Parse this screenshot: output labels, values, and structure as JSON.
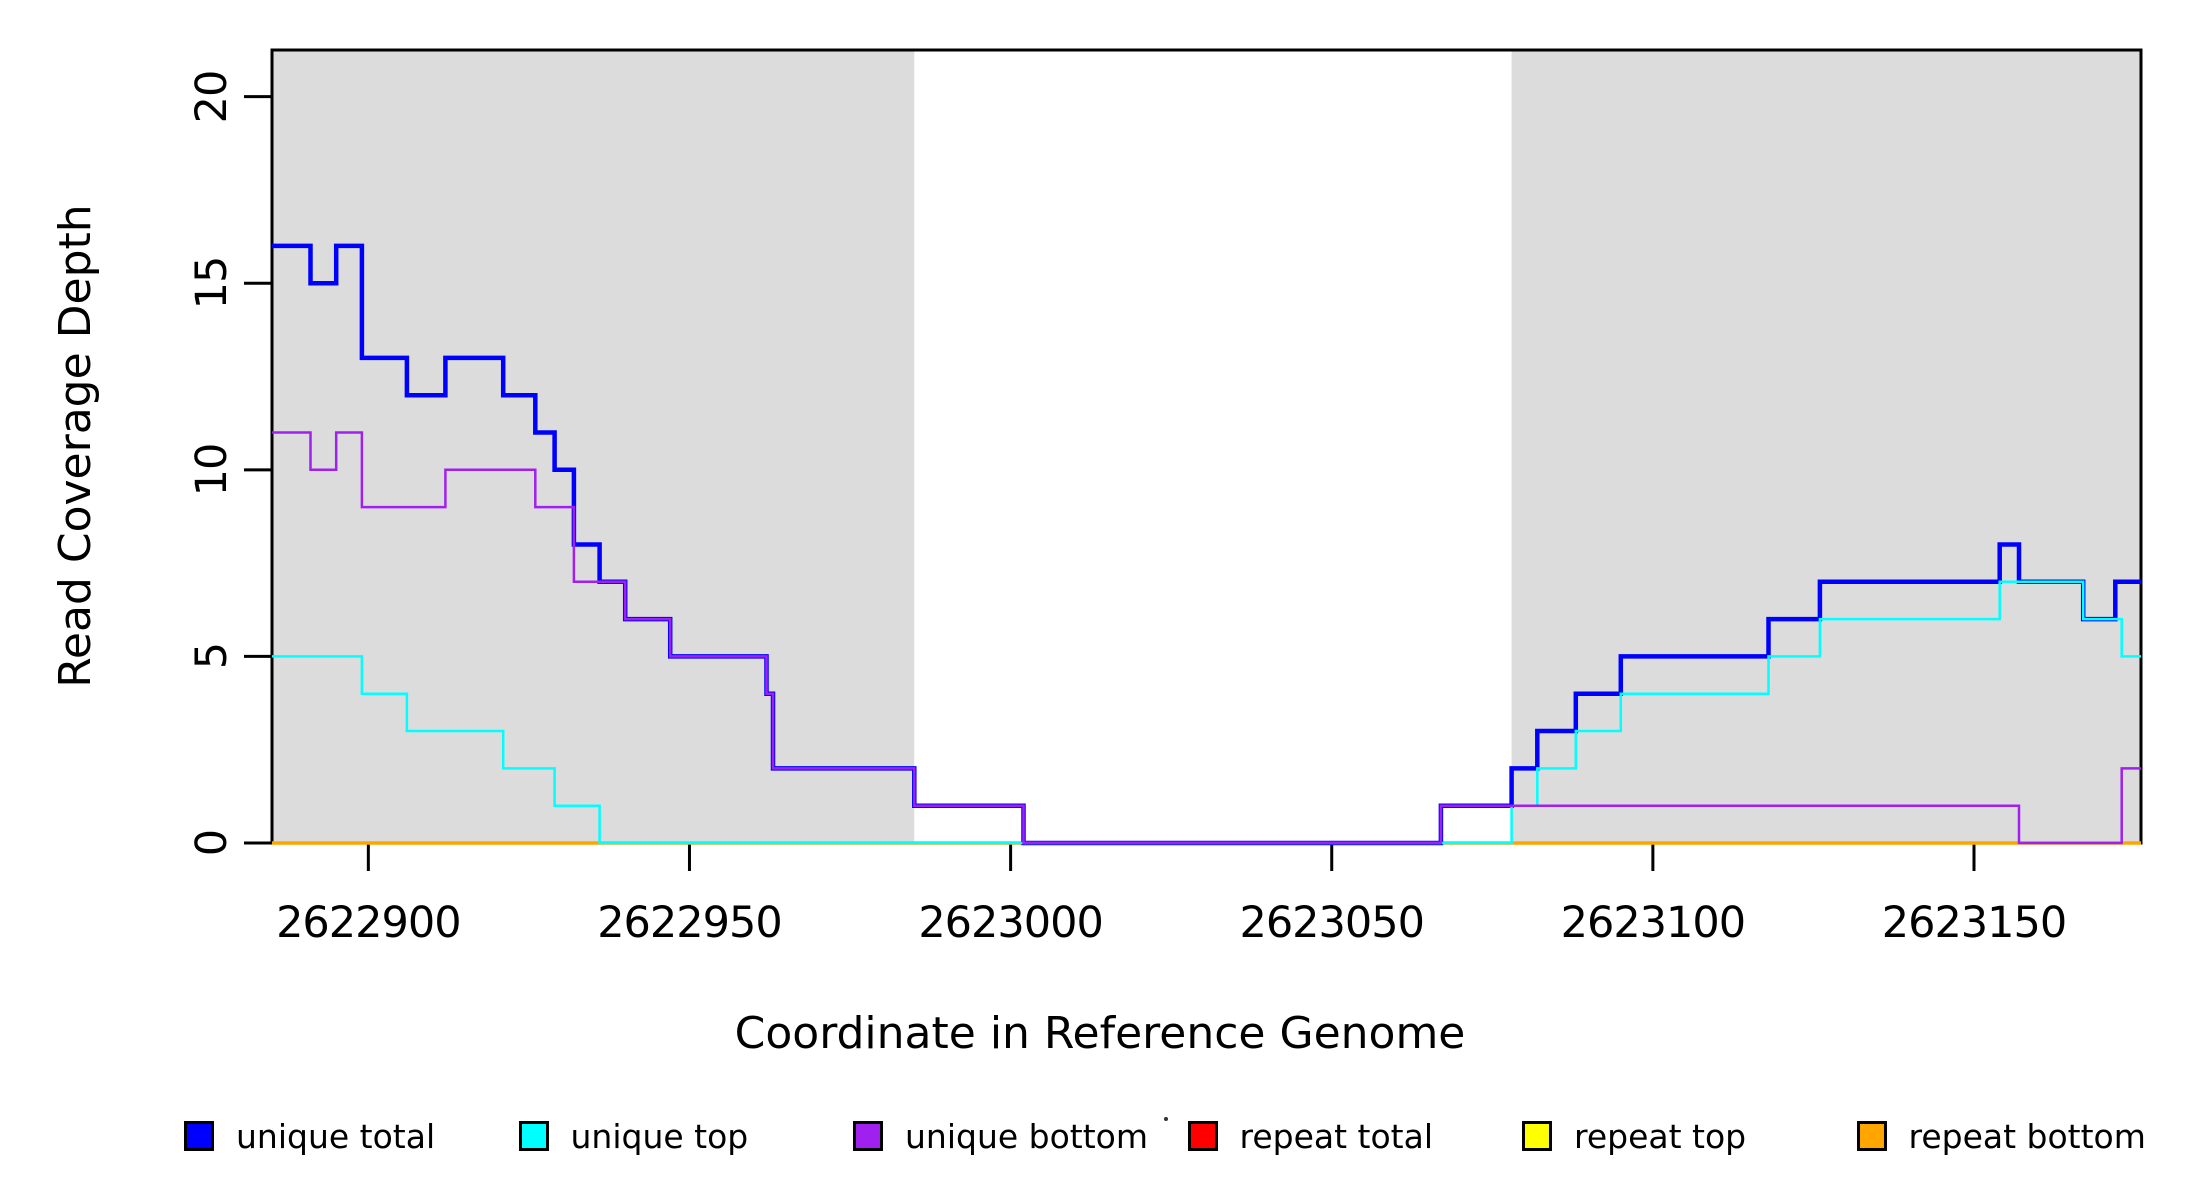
{
  "chart_data": {
    "type": "line",
    "subtype": "step-coverage-plot",
    "title": "",
    "xlabel": "Coordinate in Reference Genome",
    "ylabel": "Read Coverage Depth",
    "xlim": [
      2622885,
      2623176
    ],
    "ylim": [
      0,
      21.25
    ],
    "x_ticks": [
      2622900,
      2622950,
      2623000,
      2623050,
      2623100,
      2623150
    ],
    "y_ticks": [
      0,
      5,
      10,
      15,
      20
    ],
    "grid": false,
    "frame_color": "#000000",
    "background_bands": [
      {
        "name": "shaded-region-left",
        "x1": 2622885,
        "x2": 2622985,
        "color": "#dcdcdc"
      },
      {
        "name": "shaded-region-right",
        "x1": 2623078,
        "x2": 2623176,
        "color": "#dcdcdc"
      }
    ],
    "series": [
      {
        "name": "unique total",
        "color": "#0000ff",
        "width": 4.5,
        "points": [
          [
            2622885,
            16
          ],
          [
            2622891,
            15
          ],
          [
            2622895,
            16
          ],
          [
            2622899,
            13
          ],
          [
            2622906,
            12
          ],
          [
            2622912,
            13
          ],
          [
            2622921,
            12
          ],
          [
            2622926,
            11
          ],
          [
            2622929,
            10
          ],
          [
            2622932,
            8
          ],
          [
            2622936,
            7
          ],
          [
            2622940,
            6
          ],
          [
            2622947,
            5
          ],
          [
            2622962,
            4
          ],
          [
            2622963,
            2
          ],
          [
            2622985,
            1
          ],
          [
            2623002,
            0
          ],
          [
            2623067,
            1
          ],
          [
            2623078,
            2
          ],
          [
            2623082,
            3
          ],
          [
            2623088,
            4
          ],
          [
            2623095,
            5
          ],
          [
            2623118,
            6
          ],
          [
            2623126,
            7
          ],
          [
            2623154,
            8
          ],
          [
            2623157,
            7
          ],
          [
            2623167,
            6
          ],
          [
            2623172,
            7
          ]
        ]
      },
      {
        "name": "unique top",
        "color": "#00ffff",
        "width": 2.5,
        "points": [
          [
            2622885,
            5
          ],
          [
            2622899,
            4
          ],
          [
            2622906,
            3
          ],
          [
            2622921,
            2
          ],
          [
            2622929,
            1
          ],
          [
            2622936,
            0
          ],
          [
            2623078,
            1
          ],
          [
            2623082,
            2
          ],
          [
            2623088,
            3
          ],
          [
            2623095,
            4
          ],
          [
            2623118,
            5
          ],
          [
            2623126,
            6
          ],
          [
            2623154,
            7
          ],
          [
            2623167,
            6
          ],
          [
            2623173,
            5
          ]
        ]
      },
      {
        "name": "unique bottom",
        "color": "#a020f0",
        "width": 2.5,
        "points": [
          [
            2622885,
            11
          ],
          [
            2622891,
            10
          ],
          [
            2622895,
            11
          ],
          [
            2622899,
            9
          ],
          [
            2622912,
            10
          ],
          [
            2622926,
            9
          ],
          [
            2622932,
            7
          ],
          [
            2622940,
            6
          ],
          [
            2622947,
            5
          ],
          [
            2622962,
            4
          ],
          [
            2622963,
            2
          ],
          [
            2622985,
            1
          ],
          [
            2623002,
            0
          ],
          [
            2623067,
            1
          ],
          [
            2623157,
            0
          ],
          [
            2623173,
            2
          ]
        ]
      },
      {
        "name": "repeat total",
        "color": "#ff0000",
        "width": 2,
        "points": [
          [
            2622885,
            0
          ]
        ]
      },
      {
        "name": "repeat top",
        "color": "#ffff00",
        "width": 2,
        "points": [
          [
            2622885,
            0
          ]
        ]
      },
      {
        "name": "repeat bottom",
        "color": "#ffa500",
        "width": 3.5,
        "points": [
          [
            2622885,
            0
          ]
        ]
      }
    ],
    "draw_order": [
      "repeat total",
      "repeat top",
      "repeat bottom",
      "unique total",
      "unique top",
      "unique bottom"
    ],
    "legend": {
      "position": "bottom",
      "items": [
        {
          "label": "unique total",
          "color": "#0000ff"
        },
        {
          "label": "unique top",
          "color": "#00ffff"
        },
        {
          "label": "unique bottom",
          "color": "#a020f0"
        },
        {
          "label": "repeat total",
          "color": "#ff0000"
        },
        {
          "label": "repeat top",
          "color": "#ffff00"
        },
        {
          "label": "repeat bottom",
          "color": "#ffa500"
        }
      ]
    }
  }
}
